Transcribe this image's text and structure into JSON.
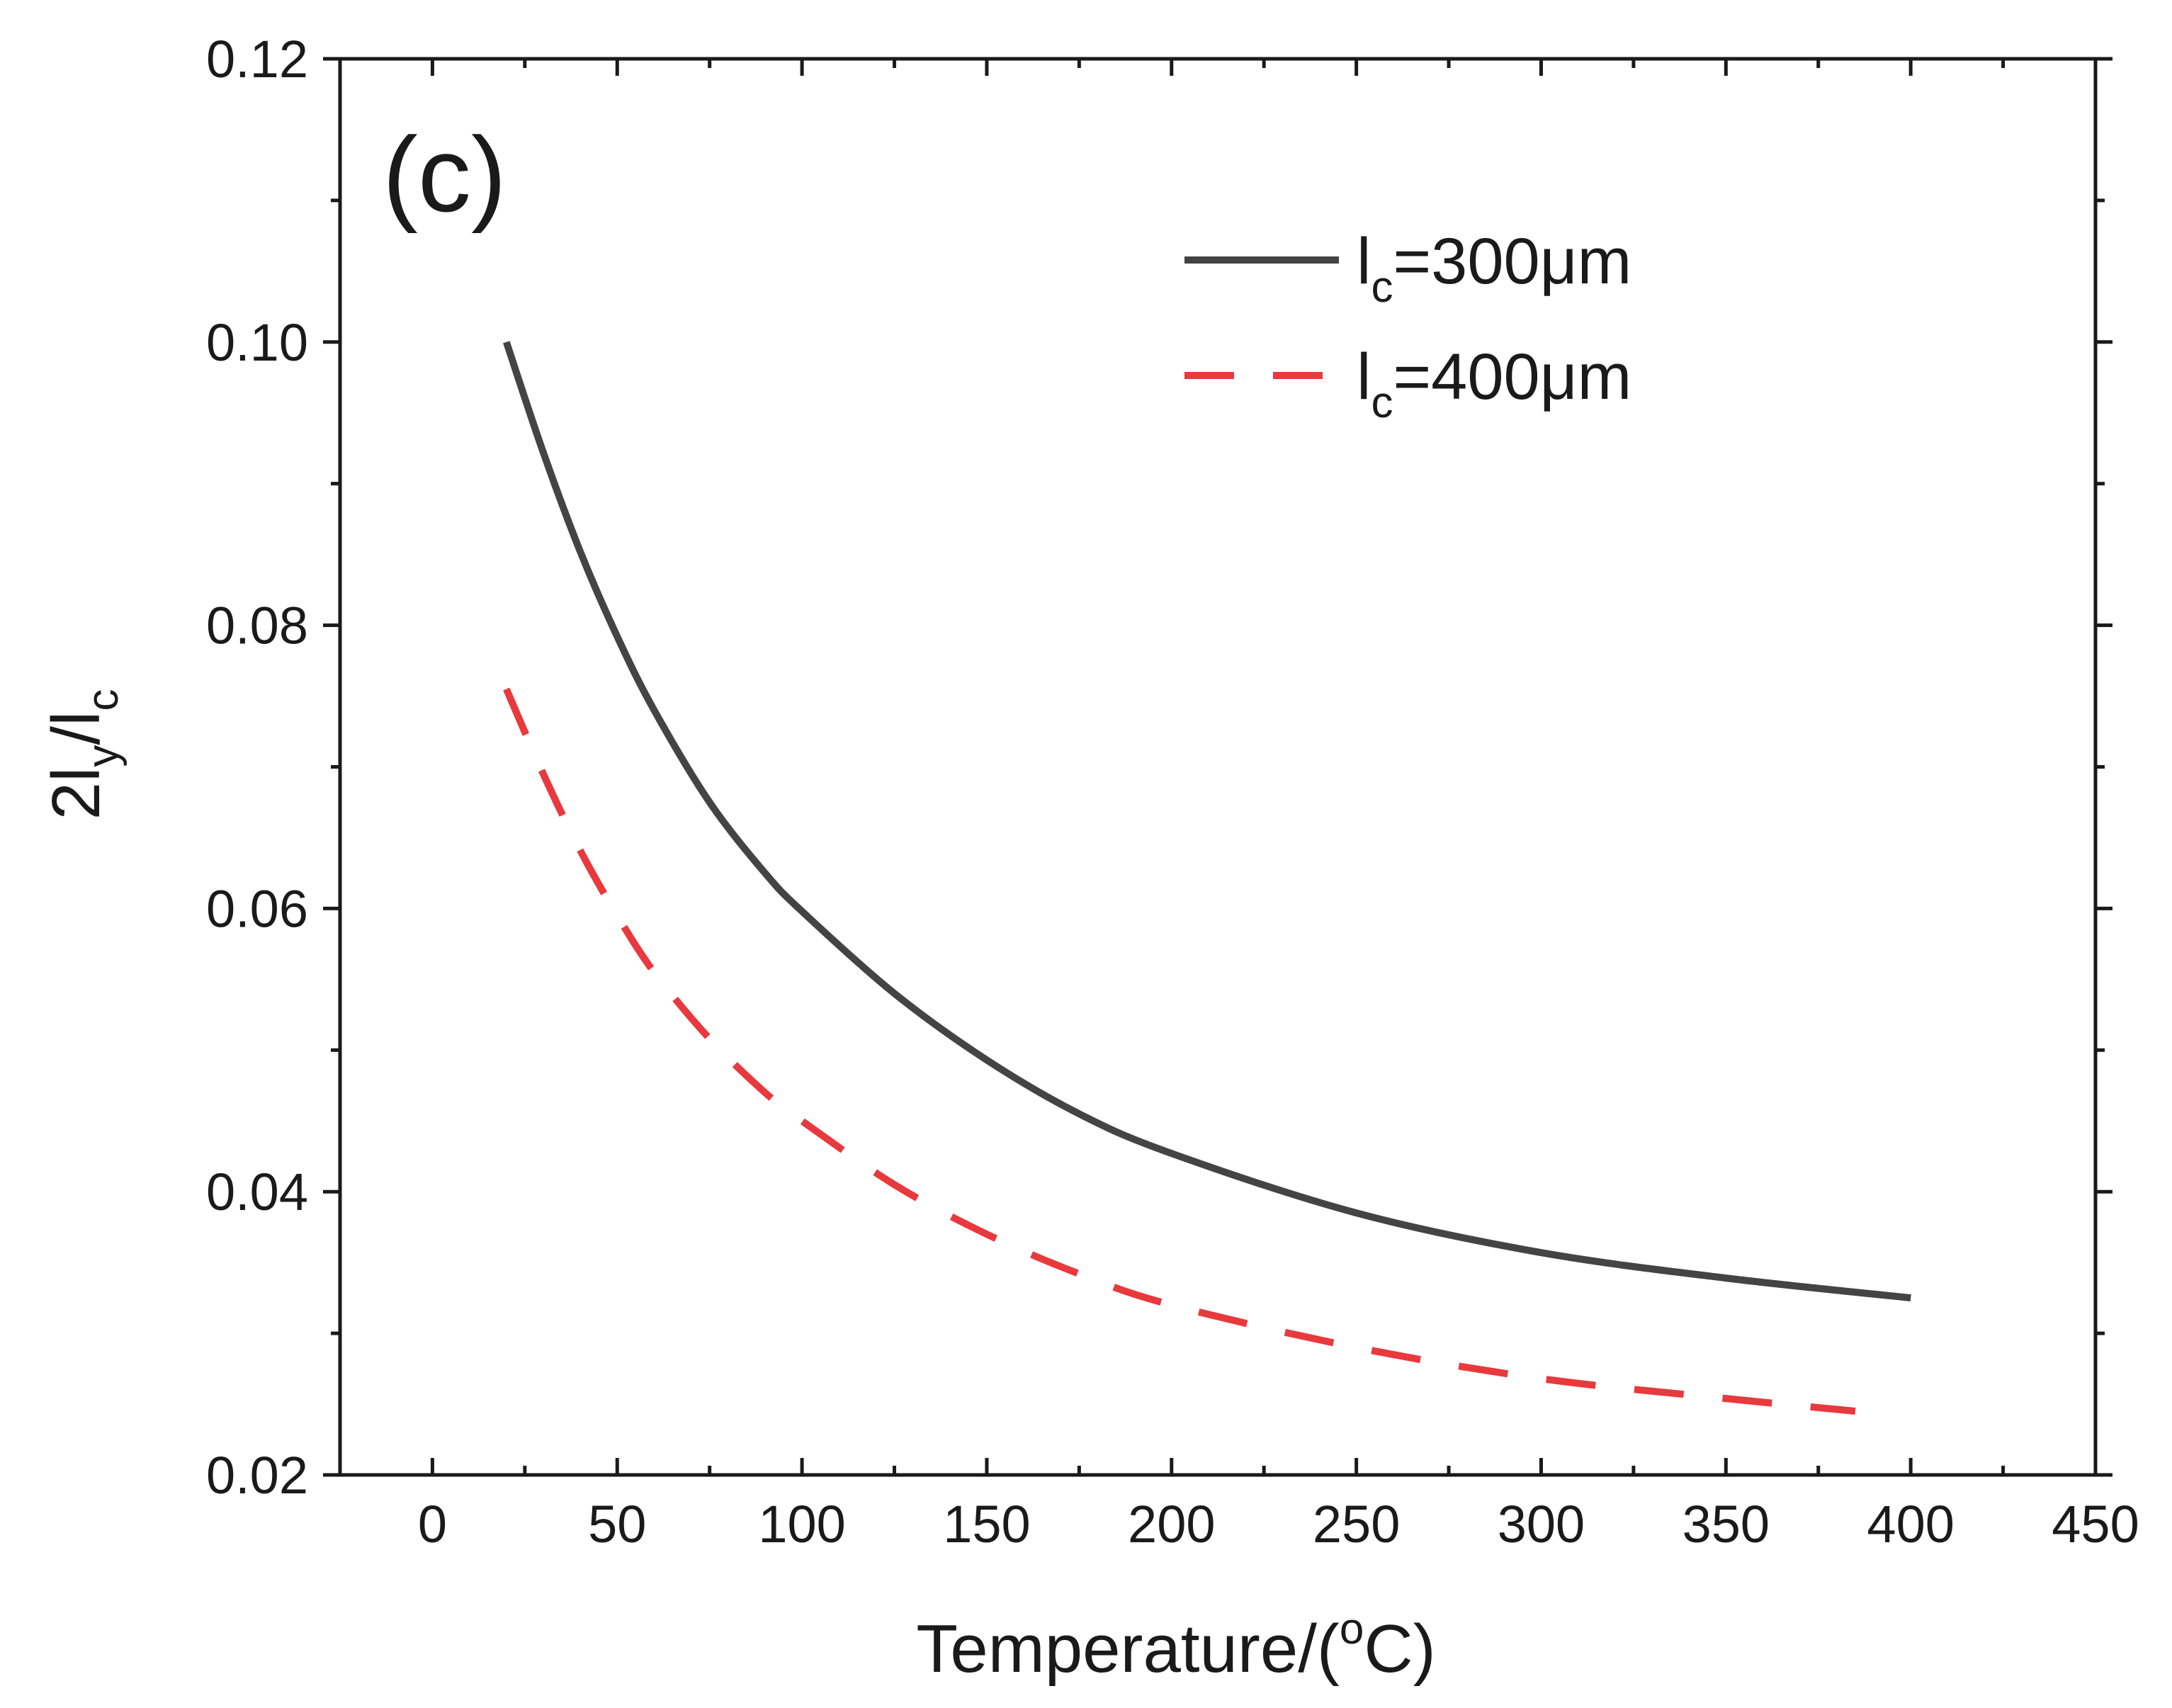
{
  "chart_data": {
    "type": "line",
    "panel_label": "(c)",
    "xlabel": "Temperature/(oC)",
    "xlabel_parts": {
      "before": "Temperature/(",
      "sup": "o",
      "after": "C)"
    },
    "ylabel": "2ly/lc",
    "ylabel_parts": {
      "a": "2l",
      "sub1": "y",
      "b": "/l",
      "sub2": "c"
    },
    "xlim": [
      -25,
      450
    ],
    "ylim": [
      0.02,
      0.12
    ],
    "xticks": [
      0,
      50,
      100,
      150,
      200,
      250,
      300,
      350,
      400,
      450
    ],
    "xtick_labels": [
      "0",
      "50",
      "100",
      "150",
      "200",
      "250",
      "300",
      "350",
      "400",
      "450"
    ],
    "yticks": [
      0.02,
      0.04,
      0.06,
      0.08,
      0.1,
      0.12
    ],
    "ytick_labels": [
      "0.02",
      "0.04",
      "0.06",
      "0.08",
      "0.10",
      "0.12"
    ],
    "grid": false,
    "legend_position": "top-right",
    "series": [
      {
        "name": "lc=300μm",
        "label_parts": {
          "a": "l",
          "sub": "c",
          "b": "=300μm"
        },
        "style": "solid",
        "color": "#444444",
        "x": [
          20,
          30,
          40,
          50,
          60,
          75,
          90,
          100,
          125,
          150,
          175,
          200,
          250,
          300,
          350,
          400
        ],
        "y": [
          0.1,
          0.0922,
          0.0852,
          0.0792,
          0.074,
          0.0675,
          0.0625,
          0.0598,
          0.054,
          0.0493,
          0.0455,
          0.0427,
          0.0385,
          0.0357,
          0.0339,
          0.0325
        ]
      },
      {
        "name": "lc=400μm",
        "label_parts": {
          "a": "l",
          "sub": "c",
          "b": "=400μm"
        },
        "style": "dashed",
        "color": "#e8393d",
        "x": [
          20,
          30,
          40,
          50,
          60,
          75,
          90,
          100,
          125,
          150,
          175,
          200,
          250,
          300,
          350,
          385
        ],
        "y": [
          0.0755,
          0.0695,
          0.0641,
          0.0595,
          0.0555,
          0.0508,
          0.047,
          0.045,
          0.0405,
          0.037,
          0.0342,
          0.032,
          0.029,
          0.0268,
          0.0254,
          0.0245
        ]
      }
    ]
  }
}
